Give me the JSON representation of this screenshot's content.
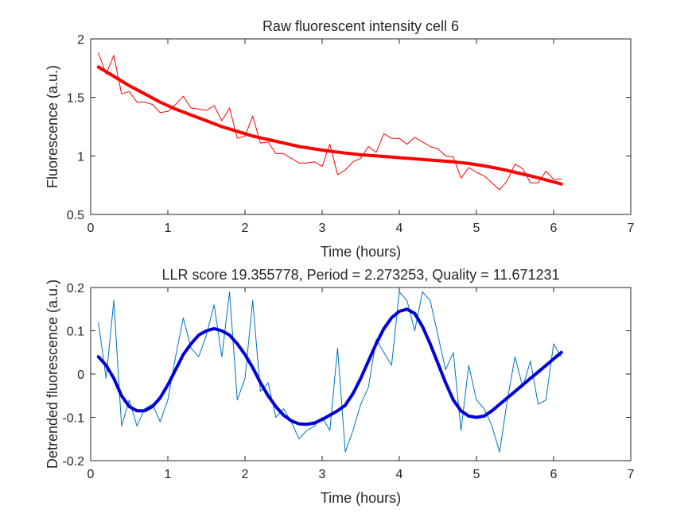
{
  "chart_data": [
    {
      "type": "line",
      "title": "Raw fluorescent intensity cell 6",
      "xlabel": "Time (hours)",
      "ylabel": "Fluorescence (a.u.)",
      "xlim": [
        0,
        7
      ],
      "ylim": [
        0.5,
        2
      ],
      "xticks": [
        0,
        1,
        2,
        3,
        4,
        5,
        6,
        7
      ],
      "yticks": [
        0.5,
        1,
        1.5,
        2
      ],
      "ytick_labels": [
        "0.5",
        "1",
        "1.5",
        "2"
      ],
      "grid": false,
      "series": [
        {
          "style": "raw",
          "color": "#ff0000",
          "x": [
            0.1,
            0.2,
            0.3,
            0.4,
            0.5,
            0.6,
            0.7,
            0.8,
            0.9,
            1.0,
            1.1,
            1.2,
            1.3,
            1.4,
            1.5,
            1.6,
            1.7,
            1.8,
            1.9,
            2.0,
            2.1,
            2.2,
            2.3,
            2.4,
            2.5,
            2.6,
            2.7,
            2.8,
            2.9,
            3.0,
            3.1,
            3.2,
            3.3,
            3.4,
            3.5,
            3.6,
            3.7,
            3.8,
            3.9,
            4.0,
            4.1,
            4.2,
            4.3,
            4.4,
            4.5,
            4.6,
            4.7,
            4.8,
            4.9,
            5.0,
            5.1,
            5.2,
            5.3,
            5.4,
            5.5,
            5.6,
            5.7,
            5.8,
            5.9,
            6.0,
            6.1
          ],
          "y": [
            1.88,
            1.7,
            1.86,
            1.53,
            1.55,
            1.46,
            1.46,
            1.44,
            1.37,
            1.38,
            1.44,
            1.51,
            1.41,
            1.4,
            1.39,
            1.43,
            1.3,
            1.41,
            1.15,
            1.17,
            1.34,
            1.11,
            1.12,
            1.02,
            1.02,
            0.98,
            0.94,
            0.94,
            0.95,
            0.91,
            1.1,
            0.84,
            0.88,
            0.95,
            0.98,
            1.08,
            1.03,
            1.19,
            1.15,
            1.15,
            1.1,
            1.16,
            1.12,
            1.08,
            1.06,
            1.0,
            0.99,
            0.81,
            0.9,
            0.86,
            0.83,
            0.77,
            0.71,
            0.79,
            0.93,
            0.89,
            0.77,
            0.77,
            0.87,
            0.8,
            0.8
          ]
        },
        {
          "style": "fit",
          "color": "#ff0000",
          "x": [
            0.1,
            0.3,
            0.5,
            0.7,
            0.9,
            1.1,
            1.3,
            1.5,
            1.7,
            1.9,
            2.1,
            2.3,
            2.5,
            2.7,
            2.9,
            3.1,
            3.3,
            3.5,
            3.7,
            3.9,
            4.1,
            4.3,
            4.5,
            4.7,
            4.9,
            5.1,
            5.3,
            5.5,
            5.7,
            5.9,
            6.1
          ],
          "y": [
            1.76,
            1.68,
            1.6,
            1.53,
            1.46,
            1.4,
            1.35,
            1.3,
            1.25,
            1.21,
            1.17,
            1.14,
            1.11,
            1.08,
            1.06,
            1.04,
            1.025,
            1.01,
            1.0,
            0.99,
            0.98,
            0.97,
            0.96,
            0.95,
            0.935,
            0.915,
            0.89,
            0.86,
            0.83,
            0.795,
            0.76
          ]
        }
      ]
    },
    {
      "type": "line",
      "title": "LLR score 19.355778, Period = 2.273253, Quality = 11.671231",
      "xlabel": "Time (hours)",
      "ylabel": "Detrended fluorescence (a.u.)",
      "xlim": [
        0,
        7
      ],
      "ylim": [
        -0.2,
        0.2
      ],
      "xticks": [
        0,
        1,
        2,
        3,
        4,
        5,
        6,
        7
      ],
      "yticks": [
        -0.2,
        -0.1,
        0,
        0.1,
        0.2
      ],
      "ytick_labels": [
        "-0.2",
        "-0.1",
        "0",
        "0.1",
        "0.2"
      ],
      "grid": false,
      "series": [
        {
          "style": "raw",
          "color": "#0072bd",
          "x": [
            0.1,
            0.2,
            0.3,
            0.4,
            0.5,
            0.6,
            0.7,
            0.8,
            0.9,
            1.0,
            1.1,
            1.2,
            1.3,
            1.4,
            1.5,
            1.6,
            1.7,
            1.8,
            1.9,
            2.0,
            2.1,
            2.2,
            2.3,
            2.4,
            2.5,
            2.6,
            2.7,
            2.8,
            2.9,
            3.0,
            3.1,
            3.2,
            3.3,
            3.4,
            3.5,
            3.6,
            3.7,
            3.8,
            3.9,
            4.0,
            4.1,
            4.2,
            4.3,
            4.4,
            4.5,
            4.6,
            4.7,
            4.8,
            4.9,
            5.0,
            5.1,
            5.2,
            5.3,
            5.4,
            5.5,
            5.6,
            5.7,
            5.8,
            5.9,
            6.0,
            6.1
          ],
          "y": [
            0.12,
            -0.01,
            0.17,
            -0.12,
            -0.06,
            -0.12,
            -0.08,
            -0.07,
            -0.11,
            -0.06,
            0.04,
            0.13,
            0.06,
            0.04,
            0.09,
            0.16,
            0.04,
            0.19,
            -0.06,
            -0.01,
            0.17,
            -0.04,
            -0.02,
            -0.1,
            -0.08,
            -0.11,
            -0.15,
            -0.13,
            -0.12,
            -0.1,
            -0.13,
            0.06,
            -0.18,
            -0.13,
            -0.07,
            -0.03,
            0.08,
            0.05,
            0.02,
            0.19,
            0.17,
            0.1,
            0.19,
            0.17,
            0.09,
            0.01,
            0.05,
            -0.13,
            0.02,
            -0.06,
            -0.08,
            -0.12,
            -0.18,
            -0.06,
            0.04,
            -0.03,
            0.03,
            -0.07,
            -0.06,
            0.07,
            0.04
          ]
        },
        {
          "style": "fit",
          "color": "#0000d9",
          "x": [
            0.1,
            0.2,
            0.3,
            0.4,
            0.5,
            0.6,
            0.7,
            0.8,
            0.9,
            1.0,
            1.1,
            1.2,
            1.3,
            1.4,
            1.5,
            1.6,
            1.7,
            1.8,
            1.9,
            2.0,
            2.1,
            2.2,
            2.3,
            2.4,
            2.5,
            2.6,
            2.7,
            2.8,
            2.9,
            3.0,
            3.1,
            3.2,
            3.3,
            3.4,
            3.5,
            3.6,
            3.7,
            3.8,
            3.9,
            4.0,
            4.1,
            4.2,
            4.3,
            4.4,
            4.5,
            4.6,
            4.7,
            4.8,
            4.9,
            5.0,
            5.1,
            5.2,
            5.3,
            5.4,
            5.5,
            5.6,
            5.7,
            5.8,
            5.9,
            6.0,
            6.1
          ],
          "y": [
            0.04,
            0.02,
            -0.01,
            -0.05,
            -0.075,
            -0.085,
            -0.085,
            -0.075,
            -0.055,
            -0.025,
            0.01,
            0.045,
            0.07,
            0.09,
            0.1,
            0.105,
            0.1,
            0.09,
            0.07,
            0.045,
            0.015,
            -0.02,
            -0.05,
            -0.075,
            -0.095,
            -0.108,
            -0.115,
            -0.116,
            -0.113,
            -0.105,
            -0.095,
            -0.085,
            -0.072,
            -0.045,
            -0.01,
            0.03,
            0.07,
            0.105,
            0.13,
            0.145,
            0.15,
            0.14,
            0.11,
            0.07,
            0.025,
            -0.02,
            -0.06,
            -0.085,
            -0.097,
            -0.1,
            -0.097,
            -0.085,
            -0.07,
            -0.055,
            -0.04,
            -0.025,
            -0.01,
            0.005,
            0.02,
            0.035,
            0.05
          ]
        }
      ]
    }
  ]
}
